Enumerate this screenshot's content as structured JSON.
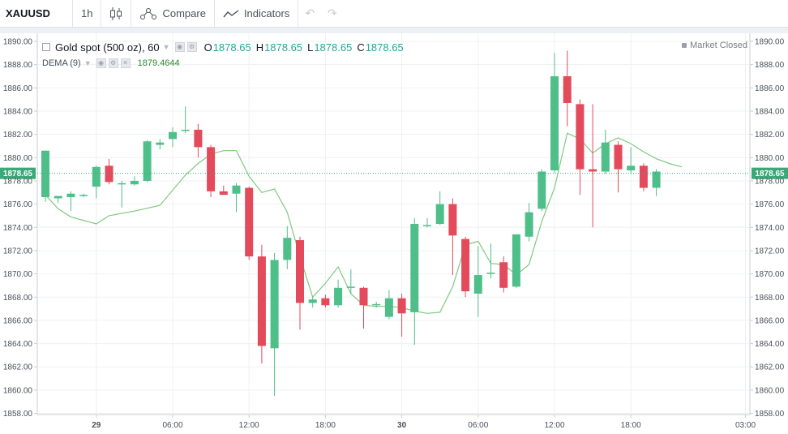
{
  "toolbar": {
    "symbol": "XAUUSD",
    "interval": "1h",
    "compare_label": "Compare",
    "indicators_label": "Indicators",
    "undo_icon": "undo-icon",
    "redo_icon": "redo-icon"
  },
  "legend": {
    "title": "Gold spot (500 oz), 60",
    "o_label": "O",
    "o_value": "1878.65",
    "h_label": "H",
    "h_value": "1878.65",
    "l_label": "L",
    "l_value": "1878.65",
    "c_label": "C",
    "c_value": "1878.65",
    "dema_label": "DEMA (9)",
    "dema_value": "1879.4644"
  },
  "status": {
    "market_closed": "Market Closed"
  },
  "colors": {
    "up": "#4fbf8a",
    "down": "#e34a5b",
    "dema": "#7fc97f",
    "last_price": "#3aa877",
    "grid": "#eef0f3",
    "axis_text": "#4a4f5a"
  },
  "chart_data": {
    "type": "candlestick",
    "symbol": "XAUUSD",
    "interval": "1h",
    "ylim": [
      1858,
      1891
    ],
    "y_ticks": [
      "1858.00",
      "1860.00",
      "1862.00",
      "1864.00",
      "1866.00",
      "1868.00",
      "1870.00",
      "1872.00",
      "1874.00",
      "1876.00",
      "1878.00",
      "1880.00",
      "1882.00",
      "1884.00",
      "1886.00",
      "1888.00",
      "1890.00"
    ],
    "x_ticks": [
      {
        "label": "29",
        "bold": true,
        "bar": 4
      },
      {
        "label": "06:00",
        "bold": false,
        "bar": 10
      },
      {
        "label": "12:00",
        "bold": false,
        "bar": 16
      },
      {
        "label": "18:00",
        "bold": false,
        "bar": 22
      },
      {
        "label": "30",
        "bold": true,
        "bar": 28
      },
      {
        "label": "06:00",
        "bold": false,
        "bar": 34
      },
      {
        "label": "12:00",
        "bold": false,
        "bar": 40
      },
      {
        "label": "18:00",
        "bold": false,
        "bar": 46
      },
      {
        "label": "03:00",
        "bold": false,
        "bar": 55
      }
    ],
    "last_price": "1878.65",
    "candles": [
      {
        "o": 1876.6,
        "h": 1880.6,
        "l": 1876.2,
        "c": 1880.6
      },
      {
        "o": 1876.5,
        "h": 1876.7,
        "l": 1876.1,
        "c": 1876.7
      },
      {
        "o": 1876.6,
        "h": 1877.1,
        "l": 1875.4,
        "c": 1876.9
      },
      {
        "o": 1876.8,
        "h": 1876.9,
        "l": 1876.6,
        "c": 1876.8
      },
      {
        "o": 1877.5,
        "h": 1879.3,
        "l": 1876.5,
        "c": 1879.2
      },
      {
        "o": 1879.3,
        "h": 1879.9,
        "l": 1877.7,
        "c": 1877.9
      },
      {
        "o": 1877.8,
        "h": 1878.0,
        "l": 1875.7,
        "c": 1877.8
      },
      {
        "o": 1877.7,
        "h": 1878.4,
        "l": 1877.6,
        "c": 1878.0
      },
      {
        "o": 1878.0,
        "h": 1881.5,
        "l": 1877.9,
        "c": 1881.4
      },
      {
        "o": 1881.1,
        "h": 1881.6,
        "l": 1880.7,
        "c": 1881.3
      },
      {
        "o": 1881.6,
        "h": 1882.6,
        "l": 1880.9,
        "c": 1882.2
      },
      {
        "o": 1882.3,
        "h": 1884.4,
        "l": 1882.1,
        "c": 1882.4
      },
      {
        "o": 1882.4,
        "h": 1882.9,
        "l": 1880.0,
        "c": 1880.9
      },
      {
        "o": 1880.9,
        "h": 1881.1,
        "l": 1876.6,
        "c": 1877.1
      },
      {
        "o": 1877.1,
        "h": 1877.6,
        "l": 1876.8,
        "c": 1876.8
      },
      {
        "o": 1876.9,
        "h": 1877.8,
        "l": 1875.3,
        "c": 1877.6
      },
      {
        "o": 1877.4,
        "h": 1877.5,
        "l": 1871.2,
        "c": 1871.5
      },
      {
        "o": 1871.5,
        "h": 1872.5,
        "l": 1862.3,
        "c": 1863.8
      },
      {
        "o": 1863.6,
        "h": 1871.8,
        "l": 1859.5,
        "c": 1871.2
      },
      {
        "o": 1871.2,
        "h": 1874.1,
        "l": 1870.4,
        "c": 1873.1
      },
      {
        "o": 1872.9,
        "h": 1873.2,
        "l": 1865.2,
        "c": 1867.5
      },
      {
        "o": 1867.5,
        "h": 1868.0,
        "l": 1867.1,
        "c": 1867.8
      },
      {
        "o": 1867.9,
        "h": 1868.2,
        "l": 1867.1,
        "c": 1867.3
      },
      {
        "o": 1867.3,
        "h": 1869.5,
        "l": 1867.1,
        "c": 1868.8
      },
      {
        "o": 1868.8,
        "h": 1870.4,
        "l": 1868.3,
        "c": 1868.9
      },
      {
        "o": 1868.8,
        "h": 1868.9,
        "l": 1865.3,
        "c": 1867.3
      },
      {
        "o": 1867.3,
        "h": 1867.6,
        "l": 1867.1,
        "c": 1867.4
      },
      {
        "o": 1866.3,
        "h": 1868.6,
        "l": 1866.1,
        "c": 1867.9
      },
      {
        "o": 1867.9,
        "h": 1868.3,
        "l": 1864.6,
        "c": 1866.6
      },
      {
        "o": 1866.7,
        "h": 1874.8,
        "l": 1863.9,
        "c": 1874.3
      },
      {
        "o": 1874.1,
        "h": 1874.8,
        "l": 1874.0,
        "c": 1874.2
      },
      {
        "o": 1874.3,
        "h": 1877.1,
        "l": 1874.2,
        "c": 1876.0
      },
      {
        "o": 1876.0,
        "h": 1876.5,
        "l": 1869.9,
        "c": 1873.3
      },
      {
        "o": 1873.0,
        "h": 1873.2,
        "l": 1868.0,
        "c": 1868.5
      },
      {
        "o": 1868.3,
        "h": 1872.4,
        "l": 1866.3,
        "c": 1869.9
      },
      {
        "o": 1870.0,
        "h": 1872.6,
        "l": 1869.6,
        "c": 1870.1
      },
      {
        "o": 1871.0,
        "h": 1871.5,
        "l": 1868.4,
        "c": 1868.8
      },
      {
        "o": 1868.9,
        "h": 1873.4,
        "l": 1868.8,
        "c": 1873.4
      },
      {
        "o": 1873.2,
        "h": 1876.1,
        "l": 1872.8,
        "c": 1875.3
      },
      {
        "o": 1875.6,
        "h": 1879.0,
        "l": 1875.4,
        "c": 1878.8
      },
      {
        "o": 1878.9,
        "h": 1889.0,
        "l": 1878.7,
        "c": 1887.0
      },
      {
        "o": 1887.0,
        "h": 1889.2,
        "l": 1882.7,
        "c": 1884.7
      },
      {
        "o": 1884.6,
        "h": 1885.0,
        "l": 1876.8,
        "c": 1879.0
      },
      {
        "o": 1879.0,
        "h": 1884.6,
        "l": 1874.0,
        "c": 1878.8
      },
      {
        "o": 1878.8,
        "h": 1882.4,
        "l": 1878.6,
        "c": 1881.3
      },
      {
        "o": 1881.1,
        "h": 1881.4,
        "l": 1877.0,
        "c": 1879.0
      },
      {
        "o": 1878.9,
        "h": 1880.9,
        "l": 1878.6,
        "c": 1879.3
      },
      {
        "o": 1879.3,
        "h": 1879.5,
        "l": 1877.1,
        "c": 1877.4
      },
      {
        "o": 1877.4,
        "h": 1879.0,
        "l": 1876.7,
        "c": 1878.8
      }
    ],
    "dema": [
      {
        "bar": 0,
        "v": 1876.8
      },
      {
        "bar": 1,
        "v": 1875.6
      },
      {
        "bar": 2,
        "v": 1874.9
      },
      {
        "bar": 4,
        "v": 1874.3
      },
      {
        "bar": 5,
        "v": 1875.0
      },
      {
        "bar": 7,
        "v": 1875.4
      },
      {
        "bar": 9,
        "v": 1875.9
      },
      {
        "bar": 11,
        "v": 1878.5
      },
      {
        "bar": 12,
        "v": 1879.5
      },
      {
        "bar": 13,
        "v": 1880.3
      },
      {
        "bar": 14,
        "v": 1880.6
      },
      {
        "bar": 15,
        "v": 1880.6
      },
      {
        "bar": 16,
        "v": 1878.4
      },
      {
        "bar": 17,
        "v": 1877.0
      },
      {
        "bar": 18,
        "v": 1877.3
      },
      {
        "bar": 19,
        "v": 1875.3
      },
      {
        "bar": 20,
        "v": 1871.5
      },
      {
        "bar": 21,
        "v": 1868.0
      },
      {
        "bar": 22,
        "v": 1869.2
      },
      {
        "bar": 23,
        "v": 1870.6
      },
      {
        "bar": 24,
        "v": 1868.3
      },
      {
        "bar": 25,
        "v": 1867.3
      },
      {
        "bar": 26,
        "v": 1867.2
      },
      {
        "bar": 27,
        "v": 1867.2
      },
      {
        "bar": 28,
        "v": 1867.1
      },
      {
        "bar": 29,
        "v": 1866.8
      },
      {
        "bar": 30,
        "v": 1866.6
      },
      {
        "bar": 31,
        "v": 1866.7
      },
      {
        "bar": 32,
        "v": 1868.9
      },
      {
        "bar": 33,
        "v": 1872.5
      },
      {
        "bar": 34,
        "v": 1872.8
      },
      {
        "bar": 35,
        "v": 1870.9
      },
      {
        "bar": 36,
        "v": 1870.8
      },
      {
        "bar": 37,
        "v": 1869.9
      },
      {
        "bar": 38,
        "v": 1870.8
      },
      {
        "bar": 39,
        "v": 1874.5
      },
      {
        "bar": 40,
        "v": 1877.4
      },
      {
        "bar": 41,
        "v": 1882.1
      },
      {
        "bar": 42,
        "v": 1881.6
      },
      {
        "bar": 43,
        "v": 1880.4
      },
      {
        "bar": 44,
        "v": 1881.2
      },
      {
        "bar": 45,
        "v": 1881.7
      },
      {
        "bar": 46,
        "v": 1881.2
      },
      {
        "bar": 47,
        "v": 1880.5
      },
      {
        "bar": 48,
        "v": 1879.9
      },
      {
        "bar": 49,
        "v": 1879.5
      },
      {
        "bar": 50,
        "v": 1879.2
      }
    ]
  }
}
